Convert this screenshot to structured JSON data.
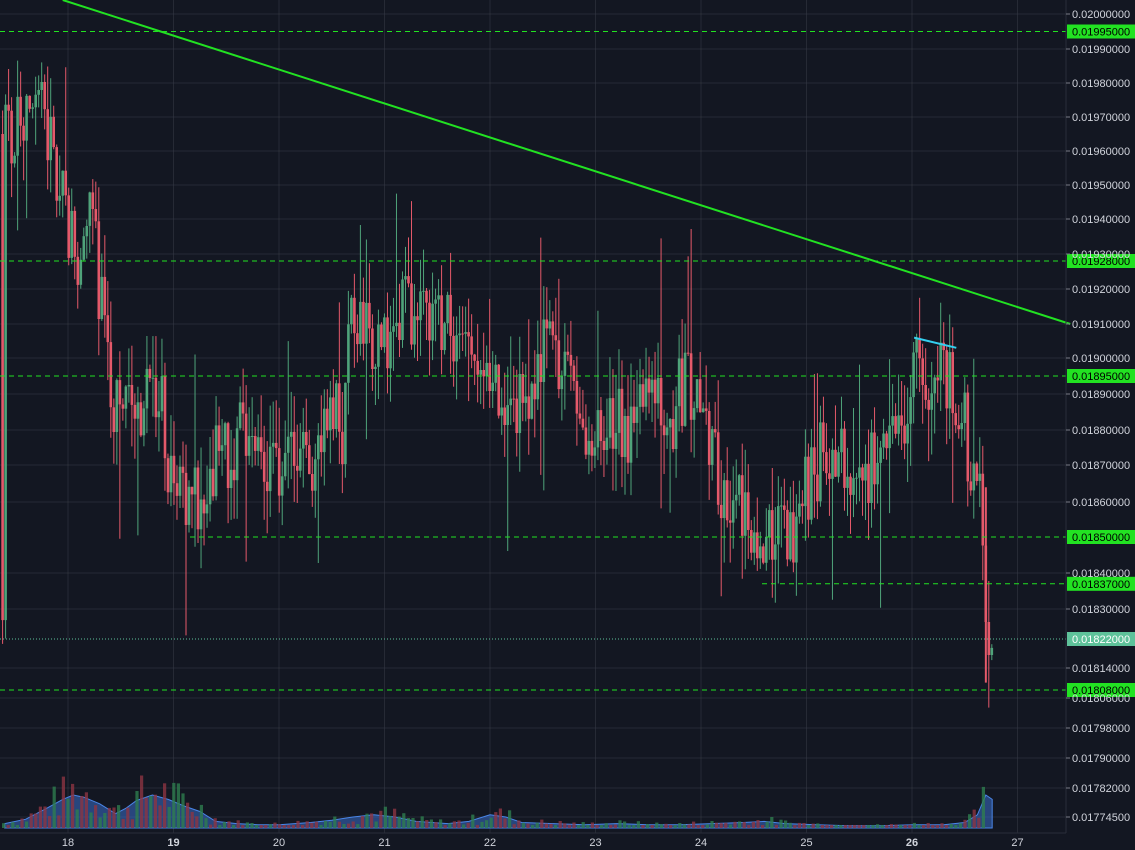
{
  "colors": {
    "background": "#131722",
    "grid": "#363a45",
    "candle_up": "#4fa37a",
    "candle_down": "#e4596a",
    "level_line": "#22e222",
    "trend_line": "#22e222",
    "cyan_line": "#35d0f0",
    "current_price": "#5ec29a",
    "volume_area": "#3a6ec8"
  },
  "chart_data": {
    "type": "candlestick",
    "y_ticks": [
      "0.02000000",
      "0.01990000",
      "0.01980000",
      "0.01970000",
      "0.01960000",
      "0.01950000",
      "0.01940000",
      "0.01930000",
      "0.01920000",
      "0.01910000",
      "0.01900000",
      "0.01890000",
      "0.01880000",
      "0.01870000",
      "0.01860000",
      "0.01840000",
      "0.01830000",
      "0.01814000",
      "0.01806000",
      "0.01798000",
      "0.01790000",
      "0.01782000",
      "0.01774500"
    ],
    "x_ticks": [
      {
        "label": "18",
        "bold": false
      },
      {
        "label": "19",
        "bold": true
      },
      {
        "label": "20",
        "bold": false
      },
      {
        "label": "21",
        "bold": false
      },
      {
        "label": "22",
        "bold": false
      },
      {
        "label": "23",
        "bold": false
      },
      {
        "label": "24",
        "bold": false
      },
      {
        "label": "25",
        "bold": false
      },
      {
        "label": "26",
        "bold": true
      },
      {
        "label": "27",
        "bold": false
      }
    ],
    "levels": [
      {
        "value": 0.01995,
        "label": "0.01995000"
      },
      {
        "value": 0.01928,
        "label": "0.01928000"
      },
      {
        "value": 0.01895,
        "label": "0.01895000"
      },
      {
        "value": 0.0185,
        "label": "0.01850000"
      },
      {
        "value": 0.01837,
        "label": "0.01837000"
      },
      {
        "value": 0.01808,
        "label": "0.01808000"
      }
    ],
    "current_price": {
      "value": 0.01822,
      "label": "0.01822000"
    },
    "trend_line": {
      "start": {
        "day": 17.95,
        "price": 0.02004
      },
      "end": {
        "day": 27.5,
        "price": 0.0191
      }
    },
    "cyan_line": {
      "start": {
        "day": 26.02,
        "price": 0.01906
      },
      "end": {
        "day": 26.42,
        "price": 0.01903
      }
    },
    "price_path": [
      [
        17.4,
        0.01965
      ],
      [
        17.6,
        0.01968
      ],
      [
        17.75,
        0.01972
      ],
      [
        17.85,
        0.0196
      ],
      [
        17.95,
        0.01945
      ],
      [
        18.05,
        0.01935
      ],
      [
        18.12,
        0.01925
      ],
      [
        18.2,
        0.01945
      ],
      [
        18.28,
        0.01925
      ],
      [
        18.35,
        0.01905
      ],
      [
        18.45,
        0.01885
      ],
      [
        18.55,
        0.0189
      ],
      [
        18.65,
        0.0188
      ],
      [
        18.75,
        0.01892
      ],
      [
        18.85,
        0.01895
      ],
      [
        18.95,
        0.0187
      ],
      [
        19.05,
        0.0186
      ],
      [
        19.15,
        0.01855
      ],
      [
        19.25,
        0.01862
      ],
      [
        19.35,
        0.01872
      ],
      [
        19.45,
        0.0187
      ],
      [
        19.55,
        0.01875
      ],
      [
        19.65,
        0.0188
      ],
      [
        19.8,
        0.01868
      ],
      [
        19.95,
        0.01866
      ],
      [
        20.1,
        0.01872
      ],
      [
        20.2,
        0.01875
      ],
      [
        20.3,
        0.01868
      ],
      [
        20.4,
        0.01875
      ],
      [
        20.5,
        0.01885
      ],
      [
        20.6,
        0.0188
      ],
      [
        20.7,
        0.01918
      ],
      [
        20.8,
        0.01908
      ],
      [
        20.9,
        0.01898
      ],
      [
        21.0,
        0.01903
      ],
      [
        21.1,
        0.01912
      ],
      [
        21.2,
        0.01915
      ],
      [
        21.3,
        0.0191
      ],
      [
        21.45,
        0.01914
      ],
      [
        21.6,
        0.0191
      ],
      [
        21.7,
        0.01905
      ],
      [
        21.8,
        0.01898
      ],
      [
        21.9,
        0.01895
      ],
      [
        22.0,
        0.0189
      ],
      [
        22.1,
        0.01893
      ],
      [
        22.2,
        0.01885
      ],
      [
        22.3,
        0.0189
      ],
      [
        22.4,
        0.01895
      ],
      [
        22.5,
        0.019
      ],
      [
        22.6,
        0.01905
      ],
      [
        22.7,
        0.01895
      ],
      [
        22.8,
        0.0189
      ],
      [
        22.9,
        0.0188
      ],
      [
        23.0,
        0.01876
      ],
      [
        23.1,
        0.01882
      ],
      [
        23.2,
        0.01885
      ],
      [
        23.3,
        0.0188
      ],
      [
        23.4,
        0.01882
      ],
      [
        23.5,
        0.01888
      ],
      [
        23.6,
        0.01885
      ],
      [
        23.7,
        0.0188
      ],
      [
        23.8,
        0.0189
      ],
      [
        23.9,
        0.01893
      ],
      [
        24.0,
        0.01885
      ],
      [
        24.1,
        0.01875
      ],
      [
        24.2,
        0.01865
      ],
      [
        24.3,
        0.0186
      ],
      [
        24.45,
        0.01855
      ],
      [
        24.55,
        0.0184
      ],
      [
        24.65,
        0.0185
      ],
      [
        24.75,
        0.01855
      ],
      [
        24.85,
        0.0185
      ],
      [
        24.95,
        0.0186
      ],
      [
        25.05,
        0.01868
      ],
      [
        25.15,
        0.01872
      ],
      [
        25.25,
        0.01875
      ],
      [
        25.35,
        0.01875
      ],
      [
        25.45,
        0.0187
      ],
      [
        25.55,
        0.01868
      ],
      [
        25.65,
        0.01872
      ],
      [
        25.75,
        0.01875
      ],
      [
        25.85,
        0.01878
      ],
      [
        25.95,
        0.01882
      ],
      [
        26.0,
        0.01902
      ],
      [
        26.08,
        0.01895
      ],
      [
        26.15,
        0.0189
      ],
      [
        26.22,
        0.01898
      ],
      [
        26.3,
        0.01895
      ],
      [
        26.38,
        0.01893
      ],
      [
        26.45,
        0.01885
      ],
      [
        26.5,
        0.0188
      ],
      [
        26.55,
        0.01872
      ],
      [
        26.6,
        0.01865
      ],
      [
        26.65,
        0.0186
      ],
      [
        26.7,
        0.0182
      ],
      [
        26.74,
        0.01812
      ],
      [
        26.78,
        0.01822
      ]
    ],
    "volume_area": [
      [
        17.4,
        0.04
      ],
      [
        17.6,
        0.08
      ],
      [
        17.8,
        0.18
      ],
      [
        17.95,
        0.26
      ],
      [
        18.05,
        0.3
      ],
      [
        18.15,
        0.28
      ],
      [
        18.3,
        0.22
      ],
      [
        18.45,
        0.13
      ],
      [
        18.55,
        0.18
      ],
      [
        18.65,
        0.25
      ],
      [
        18.8,
        0.3
      ],
      [
        18.95,
        0.26
      ],
      [
        19.1,
        0.2
      ],
      [
        19.25,
        0.15
      ],
      [
        19.4,
        0.06
      ],
      [
        19.6,
        0.04
      ],
      [
        19.8,
        0.03
      ],
      [
        20.0,
        0.03
      ],
      [
        20.3,
        0.05
      ],
      [
        20.5,
        0.07
      ],
      [
        20.7,
        0.1
      ],
      [
        20.9,
        0.12
      ],
      [
        21.1,
        0.1
      ],
      [
        21.3,
        0.06
      ],
      [
        21.6,
        0.04
      ],
      [
        21.8,
        0.06
      ],
      [
        22.0,
        0.12
      ],
      [
        22.15,
        0.1
      ],
      [
        22.3,
        0.05
      ],
      [
        22.6,
        0.04
      ],
      [
        22.9,
        0.03
      ],
      [
        23.2,
        0.04
      ],
      [
        23.5,
        0.03
      ],
      [
        23.8,
        0.03
      ],
      [
        24.1,
        0.04
      ],
      [
        24.4,
        0.05
      ],
      [
        24.6,
        0.06
      ],
      [
        24.8,
        0.04
      ],
      [
        25.1,
        0.03
      ],
      [
        25.4,
        0.02
      ],
      [
        25.7,
        0.02
      ],
      [
        26.0,
        0.03
      ],
      [
        26.3,
        0.03
      ],
      [
        26.5,
        0.05
      ],
      [
        26.62,
        0.12
      ],
      [
        26.7,
        0.3
      ],
      [
        26.76,
        0.26
      ]
    ]
  }
}
